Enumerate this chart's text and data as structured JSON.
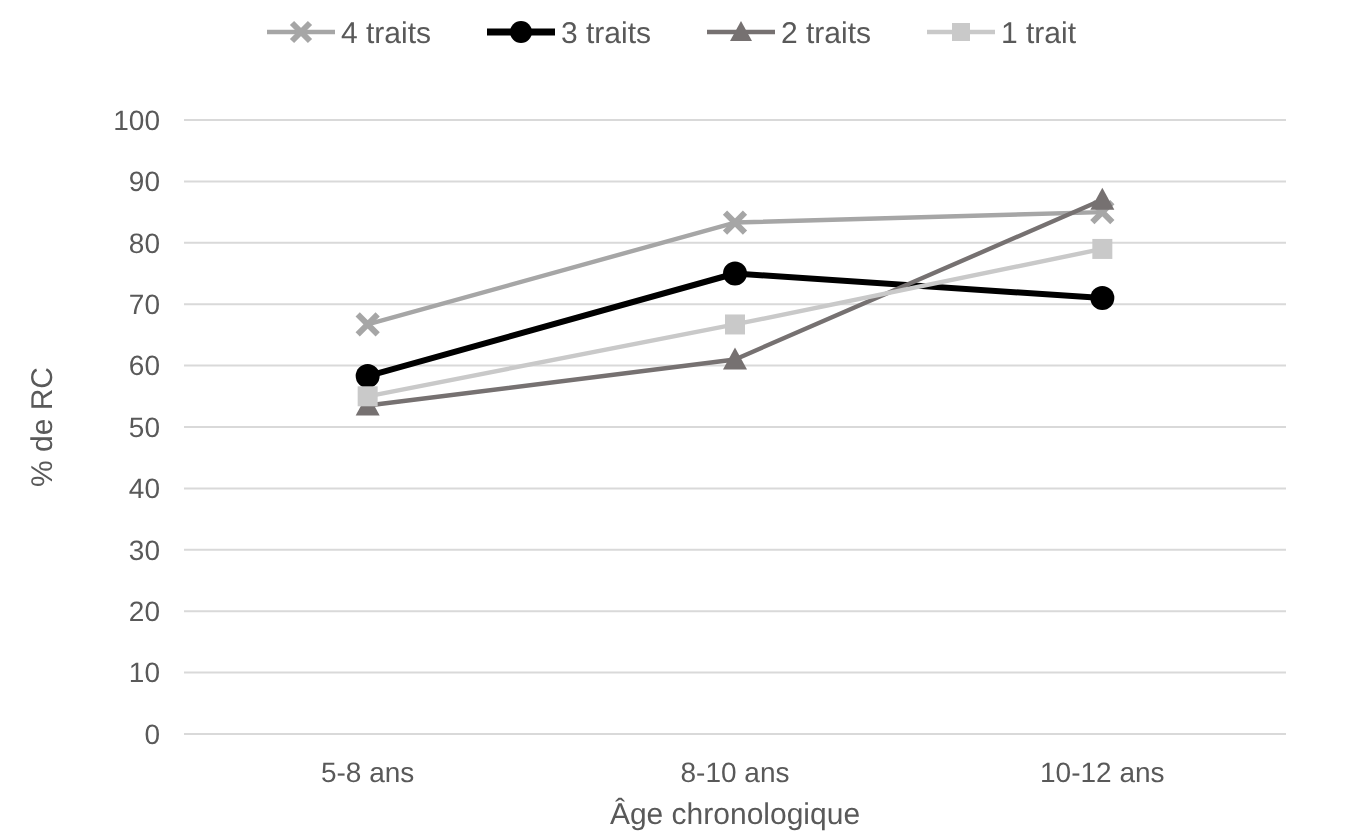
{
  "chart_data": {
    "type": "line",
    "xlabel": "Âge chronologique",
    "ylabel": "% de RC",
    "categories": [
      "5-8 ans",
      "8-10 ans",
      "10-12 ans"
    ],
    "series": [
      {
        "name": "4 traits",
        "color": "#a6a6a6",
        "marker": "cross",
        "values": [
          66.7,
          83.3,
          85
        ]
      },
      {
        "name": "3 traits",
        "color": "#000000",
        "marker": "circle",
        "values": [
          58.3,
          75,
          71
        ]
      },
      {
        "name": "2 traits",
        "color": "#767171",
        "marker": "triangle",
        "values": [
          53.5,
          61,
          87
        ]
      },
      {
        "name": "1 trait",
        "color": "#c9c9c9",
        "marker": "square",
        "values": [
          55,
          66.7,
          79
        ]
      }
    ],
    "ylim": [
      0,
      100
    ],
    "yticks": [
      0,
      10,
      20,
      30,
      40,
      50,
      60,
      70,
      80,
      90,
      100
    ],
    "grid": "y",
    "legend": "top"
  }
}
